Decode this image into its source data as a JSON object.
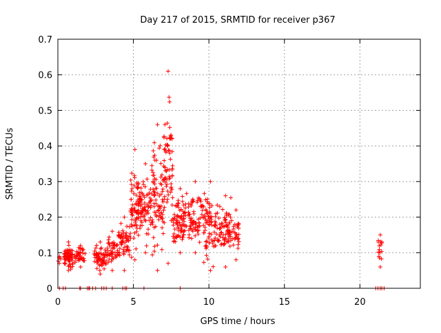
{
  "chart_data": {
    "type": "scatter",
    "title": "Day 217 of 2015, SRMTID for receiver p367",
    "xlabel": "GPS time / hours",
    "ylabel": "SRMTID / TECUs",
    "xlim": [
      0,
      24
    ],
    "ylim": [
      0,
      0.7
    ],
    "xticks": [
      0,
      5,
      10,
      15,
      20
    ],
    "xtick_labels": [
      "0",
      "5",
      "10",
      "15",
      "20"
    ],
    "yticks": [
      0,
      0.1,
      0.2,
      0.3,
      0.4,
      0.5,
      0.6,
      0.7
    ],
    "ytick_labels": [
      "0",
      "0.1",
      "0.2",
      "0.3",
      "0.4",
      "0.5",
      "0.6",
      "0.7"
    ],
    "grid": true,
    "marker": "plus",
    "colors": {
      "points": "#ff0000",
      "grid": "#a0a0a0",
      "axis": "#000000"
    },
    "clusters": [
      {
        "x": [
          0.0,
          0.2
        ],
        "y": [
          0.07,
          0.09
        ],
        "n": 4
      },
      {
        "x": [
          0.4,
          1.0
        ],
        "y": [
          0.05,
          0.13
        ],
        "n": 70
      },
      {
        "x": [
          1.1,
          1.9
        ],
        "y": [
          0.06,
          0.12
        ],
        "n": 40
      },
      {
        "x": [
          2.4,
          3.2
        ],
        "y": [
          0.04,
          0.13
        ],
        "n": 60
      },
      {
        "x": [
          3.2,
          4.0
        ],
        "y": [
          0.05,
          0.16
        ],
        "n": 45
      },
      {
        "x": [
          4.0,
          4.8
        ],
        "y": [
          0.05,
          0.2
        ],
        "n": 55
      },
      {
        "x": [
          4.8,
          5.4
        ],
        "y": [
          0.08,
          0.39
        ],
        "n": 70
      },
      {
        "x": [
          5.4,
          6.2
        ],
        "y": [
          0.1,
          0.35
        ],
        "n": 70
      },
      {
        "x": [
          6.2,
          7.0
        ],
        "y": [
          0.05,
          0.46
        ],
        "n": 80
      },
      {
        "x": [
          7.0,
          7.6
        ],
        "y": [
          0.07,
          0.61
        ],
        "n": 70
      },
      {
        "x": [
          7.6,
          8.6
        ],
        "y": [
          0.1,
          0.28
        ],
        "n": 80
      },
      {
        "x": [
          8.6,
          9.6
        ],
        "y": [
          0.1,
          0.3
        ],
        "n": 70
      },
      {
        "x": [
          9.6,
          10.6
        ],
        "y": [
          0.05,
          0.3
        ],
        "n": 80
      },
      {
        "x": [
          10.6,
          11.6
        ],
        "y": [
          0.06,
          0.26
        ],
        "n": 70
      },
      {
        "x": [
          11.6,
          12.0
        ],
        "y": [
          0.08,
          0.22
        ],
        "n": 25
      },
      {
        "x": [
          21.2,
          21.5
        ],
        "y": [
          0.06,
          0.15
        ],
        "n": 14
      }
    ],
    "zero_points_x": [
      0.1,
      0.35,
      0.5,
      1.45,
      1.5,
      1.95,
      2.05,
      2.1,
      2.3,
      2.5,
      2.9,
      3.05,
      3.2,
      3.6,
      4.3,
      4.45,
      4.55,
      5.7,
      8.1,
      21.05,
      21.2,
      21.35,
      21.45,
      21.6
    ]
  }
}
